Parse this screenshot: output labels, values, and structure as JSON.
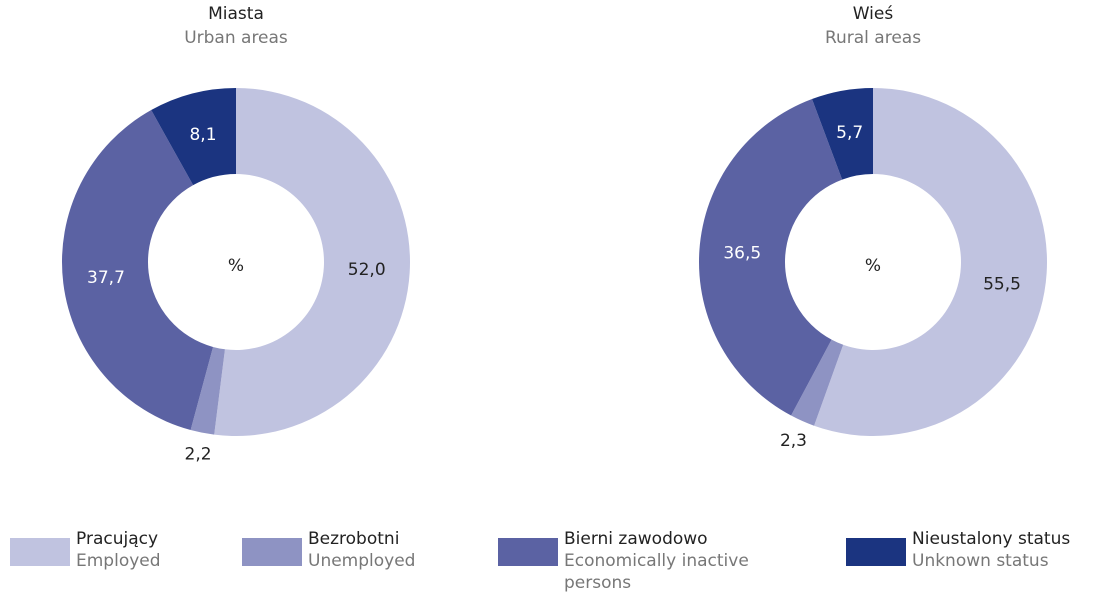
{
  "chart_data": [
    {
      "type": "pie",
      "title": "Miasta",
      "subtitle": "Urban areas",
      "center_label": "%",
      "values": [
        52.0,
        2.2,
        37.7,
        8.1
      ],
      "value_labels": [
        "52,0",
        "2,2",
        "37,7",
        "8,1"
      ]
    },
    {
      "type": "pie",
      "title": "Wieś",
      "subtitle": "Rural areas",
      "center_label": "%",
      "values": [
        55.5,
        2.3,
        36.5,
        5.7
      ],
      "value_labels": [
        "55,5",
        "2,3",
        "36,5",
        "5,7"
      ]
    }
  ],
  "legend": [
    {
      "name": "Pracujący",
      "subtitle": "Employed",
      "color": "#c0c3e0"
    },
    {
      "name": "Bezrobotni",
      "subtitle": "Unemployed",
      "color": "#8e93c3"
    },
    {
      "name": "Bierni zawodowo",
      "subtitle": "Economically inactive persons",
      "color": "#5b62a3"
    },
    {
      "name": "Nieustalony status",
      "subtitle": "Unknown status",
      "color": "#1b3480"
    }
  ]
}
